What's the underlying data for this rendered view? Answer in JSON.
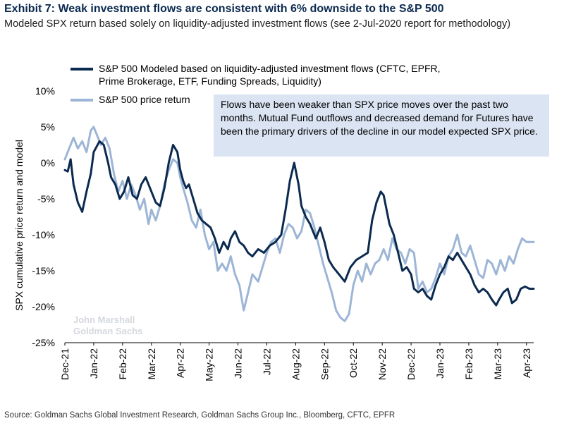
{
  "header": {
    "title": "Exhibit 7: Weak investment flows are consistent with 6% downside to the S&P 500",
    "subtitle": "Modeled SPX return based solely on liquidity-adjusted investment flows (see 2-Jul-2020 report for methodology)"
  },
  "callout": "Flows have been weaker than SPX price moves over the past two months. Mutual Fund outflows and decreased demand for Futures have been the primary drivers of the decline in our model expected SPX price.",
  "watermark": [
    "John Marshall",
    "Goldman Sachs"
  ],
  "source": "Source: Goldman Sachs Global Investment Research, Goldman Sachs Group Inc., Bloomberg, CFTC, EPFR",
  "chart_data": {
    "type": "line",
    "ylabel": "SPX cumulative price return and model",
    "ylim": [
      -25,
      10
    ],
    "yticks": [
      10,
      5,
      0,
      -5,
      -10,
      -15,
      -20,
      -25
    ],
    "ytick_labels": [
      "10%",
      "5%",
      "0%",
      "-5%",
      "-10%",
      "-15%",
      "-20%",
      "-25%"
    ],
    "xlim": [
      0,
      16.25
    ],
    "xtick_labels": [
      "Dec-21",
      "Jan-22",
      "Feb-22",
      "Mar-22",
      "Apr-22",
      "May-22",
      "Jun-22",
      "Jul-22",
      "Aug-22",
      "Sep-22",
      "Oct-22",
      "Nov-22",
      "Dec-22",
      "Jan-23",
      "Feb-23",
      "Mar-23",
      "Apr-23"
    ],
    "legend_position": "top-left",
    "colors": {
      "model": "#0b2a4f",
      "price": "#9db5d6"
    },
    "series": [
      {
        "name": "S&P 500 Modeled based on liquidity-adjusted investment flows (CFTC, EPFR, Prime Brokerage, ETF, Funding Spreads, Liquidity)",
        "legend_lines": [
          "S&P 500 Modeled based on liquidity-adjusted investment flows (CFTC, EPFR,",
          "Prime Brokerage, ETF, Funding Spreads, Liquidity)"
        ],
        "color": "#0b2a4f",
        "x": [
          0,
          0.1,
          0.2,
          0.3,
          0.45,
          0.6,
          0.75,
          0.9,
          1.0,
          1.2,
          1.35,
          1.5,
          1.6,
          1.75,
          1.9,
          2.05,
          2.2,
          2.35,
          2.5,
          2.65,
          2.8,
          3.0,
          3.15,
          3.3,
          3.45,
          3.6,
          3.75,
          3.9,
          4.0,
          4.1,
          4.2,
          4.3,
          4.45,
          4.6,
          4.75,
          4.9,
          5.05,
          5.2,
          5.35,
          5.5,
          5.65,
          5.75,
          5.9,
          6.05,
          6.2,
          6.35,
          6.5,
          6.7,
          6.9,
          7.1,
          7.3,
          7.5,
          7.65,
          7.8,
          7.95,
          8.1,
          8.2,
          8.35,
          8.5,
          8.7,
          8.85,
          9.0,
          9.15,
          9.3,
          9.5,
          9.7,
          9.9,
          10.1,
          10.3,
          10.5,
          10.65,
          10.8,
          10.95,
          11.05,
          11.15,
          11.25,
          11.4,
          11.55,
          11.7,
          11.85,
          12.0,
          12.1,
          12.25,
          12.4,
          12.55,
          12.7,
          12.85,
          13.0,
          13.15,
          13.3,
          13.45,
          13.6,
          13.75,
          13.9,
          14.05,
          14.2,
          14.35,
          14.5,
          14.65,
          14.8,
          14.95,
          15.05,
          15.2,
          15.35,
          15.5,
          15.65,
          15.8,
          15.95,
          16.1,
          16.25
        ],
        "values": [
          -1.0,
          -1.2,
          0.5,
          -3.0,
          -5.5,
          -6.8,
          -4.0,
          -1.5,
          1.5,
          3.0,
          2.5,
          0.0,
          -2.0,
          -3.0,
          -5.0,
          -4.0,
          -2.0,
          -4.5,
          -5.0,
          -3.0,
          -2.0,
          -4.0,
          -5.5,
          -6.0,
          -3.5,
          0.0,
          2.5,
          1.5,
          -1.0,
          -2.5,
          -3.5,
          -3.0,
          -5.0,
          -7.0,
          -8.0,
          -8.5,
          -9.0,
          -10.5,
          -12.5,
          -11.0,
          -12.0,
          -10.5,
          -9.5,
          -11.0,
          -11.5,
          -12.5,
          -13.0,
          -12.0,
          -12.5,
          -11.5,
          -11.0,
          -10.0,
          -6.5,
          -2.5,
          0.0,
          -3.0,
          -6.0,
          -7.5,
          -8.5,
          -10.5,
          -9.0,
          -11.0,
          -13.5,
          -14.5,
          -15.5,
          -16.5,
          -14.5,
          -13.5,
          -13.0,
          -12.5,
          -8.0,
          -5.5,
          -4.0,
          -4.5,
          -6.5,
          -8.5,
          -10.0,
          -12.5,
          -15.0,
          -14.5,
          -15.5,
          -17.5,
          -18.0,
          -17.5,
          -18.5,
          -19.0,
          -17.0,
          -15.5,
          -14.5,
          -13.0,
          -13.5,
          -12.5,
          -13.5,
          -14.5,
          -15.5,
          -17.0,
          -18.0,
          -17.5,
          -18.0,
          -19.0,
          -19.8,
          -19.0,
          -18.0,
          -17.5,
          -19.5,
          -19.0,
          -17.5,
          -17.2,
          -17.5,
          -17.5
        ]
      },
      {
        "name": "S&P 500 price return",
        "legend_lines": [
          "S&P 500 price return"
        ],
        "color": "#9db5d6",
        "x": [
          0,
          0.15,
          0.3,
          0.45,
          0.6,
          0.75,
          0.9,
          1.0,
          1.1,
          1.25,
          1.4,
          1.55,
          1.7,
          1.85,
          2.0,
          2.15,
          2.3,
          2.45,
          2.6,
          2.75,
          2.9,
          3.0,
          3.15,
          3.3,
          3.45,
          3.6,
          3.75,
          3.9,
          4.0,
          4.1,
          4.25,
          4.4,
          4.55,
          4.7,
          4.85,
          5.0,
          5.15,
          5.3,
          5.45,
          5.6,
          5.75,
          5.9,
          6.05,
          6.2,
          6.35,
          6.5,
          6.7,
          6.85,
          7.0,
          7.15,
          7.3,
          7.45,
          7.6,
          7.75,
          7.9,
          8.05,
          8.2,
          8.35,
          8.5,
          8.65,
          8.8,
          8.95,
          9.1,
          9.25,
          9.4,
          9.55,
          9.7,
          9.85,
          10.0,
          10.15,
          10.3,
          10.45,
          10.6,
          10.75,
          10.9,
          11.05,
          11.2,
          11.35,
          11.5,
          11.65,
          11.8,
          11.95,
          12.1,
          12.25,
          12.4,
          12.55,
          12.7,
          12.85,
          13.0,
          13.15,
          13.3,
          13.45,
          13.6,
          13.75,
          13.9,
          14.05,
          14.2,
          14.35,
          14.5,
          14.65,
          14.8,
          14.95,
          15.1,
          15.25,
          15.4,
          15.55,
          15.7,
          15.85,
          16.0,
          16.25
        ],
        "values": [
          0.5,
          2.0,
          3.5,
          2.0,
          3.0,
          1.5,
          4.5,
          5.0,
          4.0,
          2.5,
          3.5,
          2.0,
          -1.5,
          -4.0,
          -2.5,
          -5.0,
          -3.0,
          -4.5,
          -6.5,
          -5.0,
          -8.5,
          -6.5,
          -8.0,
          -6.0,
          -3.0,
          -1.0,
          0.5,
          0.0,
          -2.0,
          -3.5,
          -5.5,
          -8.0,
          -9.0,
          -6.5,
          -10.0,
          -12.0,
          -11.0,
          -15.0,
          -14.0,
          -15.0,
          -13.0,
          -15.5,
          -17.0,
          -20.5,
          -18.0,
          -15.5,
          -16.5,
          -14.5,
          -12.5,
          -11.0,
          -10.5,
          -12.5,
          -10.0,
          -8.5,
          -9.0,
          -10.5,
          -9.5,
          -6.5,
          -7.0,
          -9.0,
          -11.5,
          -14.0,
          -16.0,
          -18.0,
          -20.5,
          -21.5,
          -22.0,
          -21.0,
          -17.0,
          -15.0,
          -16.5,
          -14.0,
          -15.5,
          -14.0,
          -13.5,
          -12.0,
          -13.5,
          -10.5,
          -12.0,
          -12.5,
          -14.0,
          -12.0,
          -12.5,
          -17.5,
          -16.5,
          -18.0,
          -17.5,
          -16.0,
          -14.0,
          -15.5,
          -13.0,
          -12.0,
          -10.0,
          -12.5,
          -13.0,
          -11.5,
          -13.5,
          -15.5,
          -16.0,
          -13.5,
          -14.0,
          -15.5,
          -13.5,
          -15.0,
          -13.0,
          -14.0,
          -12.0,
          -10.5,
          -11.0,
          -11.0
        ]
      }
    ]
  }
}
